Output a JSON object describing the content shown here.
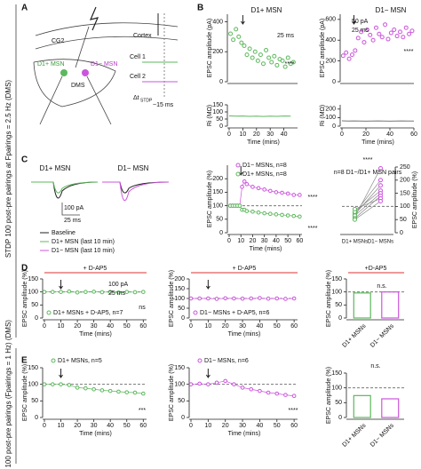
{
  "panel_labels": [
    "A",
    "B",
    "C",
    "D",
    "E"
  ],
  "side_labels": [
    "STDP 100 post-pre pairings at Fpairings = 2.5 Hz (DMS)",
    "STDP 100 post-pre pairings (Fpairings = 1 Hz) (DMS)"
  ],
  "schematic": {
    "cg2": "CG2",
    "cortex": "Cortex",
    "d1plus": "D1+ MSN",
    "d1minus": "D1− MSN",
    "dms": "DMS",
    "cell1": "Cell 1",
    "cell2": "Cell 2",
    "dt": "Δt",
    "dt_sub": "STDP",
    "delay": "~15 ms"
  },
  "traces": {
    "titles": [
      "D1+ MSN",
      "D1− MSN"
    ],
    "scale": [
      "100 pA",
      "25 ms"
    ],
    "legend": [
      "Baseline",
      "D1+ MSN (last 10 min)",
      "D1− MSN (last 10 min)"
    ]
  },
  "chart_data": [
    {
      "type": "scatter",
      "title": "D1+ MSN",
      "ylabel": "EPSC amplitude (pA)",
      "x": [
        1,
        3,
        5,
        7,
        9,
        11,
        13,
        15,
        17,
        19,
        21,
        23,
        25,
        27,
        29,
        31,
        33,
        35,
        37,
        39,
        41,
        43,
        45,
        47
      ],
      "values": [
        320,
        280,
        350,
        300,
        260,
        240,
        180,
        220,
        160,
        200,
        140,
        180,
        120,
        210,
        160,
        130,
        170,
        110,
        150,
        140,
        100,
        160,
        120,
        130
      ],
      "color": "#5cb85c",
      "xlim": [
        0,
        50
      ],
      "ylim": [
        0,
        450
      ],
      "yticks": [
        0,
        200,
        400
      ],
      "arrow_x": 10,
      "annotations": [
        "****"
      ],
      "scale_labels": [
        "25 ms"
      ]
    },
    {
      "type": "line",
      "ylabel": "Ri (MΩ)",
      "xlabel": "Time (mins)",
      "x": [
        0,
        5,
        10,
        15,
        20,
        25,
        30,
        35,
        40,
        45
      ],
      "values": [
        72,
        70,
        71,
        69,
        70,
        68,
        70,
        69,
        71,
        70
      ],
      "color": "#5cb85c",
      "xlim": [
        0,
        50
      ],
      "ylim": [
        0,
        150
      ],
      "yticks": [
        0,
        50,
        100,
        150
      ],
      "xticks": [
        0,
        10,
        20,
        30,
        40
      ]
    },
    {
      "type": "scatter",
      "title": "D1− MSN",
      "ylabel": "EPSC amplitude (pA)",
      "x": [
        1,
        3.5,
        6,
        8.5,
        11,
        13.5,
        16,
        18.5,
        21,
        23.5,
        26,
        28.5,
        31,
        33.5,
        36,
        38.5,
        41,
        43.5,
        46,
        48.5,
        51,
        53.5,
        56,
        58.5
      ],
      "values": [
        250,
        280,
        220,
        260,
        300,
        420,
        480,
        380,
        500,
        450,
        400,
        520,
        460,
        430,
        550,
        410,
        470,
        500,
        440,
        480,
        430,
        520,
        460,
        490
      ],
      "color": "#cc55dd",
      "xlim": [
        0,
        60
      ],
      "ylim": [
        0,
        650
      ],
      "yticks": [
        0,
        200,
        400,
        600
      ],
      "arrow_x": 10,
      "annotations": [
        "****"
      ],
      "scale_labels": [
        "50 pA",
        "25 ms"
      ]
    },
    {
      "type": "line",
      "ylabel": "Ri (MΩ)",
      "xlabel": "Time (mins)",
      "x": [
        0,
        5,
        10,
        15,
        20,
        25,
        30,
        35,
        40,
        45,
        50,
        55,
        60
      ],
      "values": [
        62,
        60,
        61,
        60,
        59,
        60,
        61,
        60,
        59,
        60,
        61,
        60,
        60
      ],
      "color": "#777777",
      "xlim": [
        0,
        60
      ],
      "ylim": [
        0,
        250
      ],
      "yticks": [
        0,
        100,
        200
      ],
      "xticks": [
        0,
        20,
        40,
        60
      ]
    },
    {
      "type": "line",
      "ylabel": "EPSC amplitude (%)",
      "xlabel": "Time (mins)",
      "x": [
        1,
        3,
        5,
        7,
        9,
        11,
        13,
        15,
        20,
        25,
        30,
        35,
        40,
        45,
        50,
        55,
        60
      ],
      "series": [
        {
          "name": "D1− MSNs, n=8",
          "color": "#cc55dd",
          "values": [
            100,
            100,
            100,
            100,
            100,
            170,
            190,
            180,
            170,
            165,
            160,
            155,
            150,
            148,
            145,
            140,
            140
          ]
        },
        {
          "name": "D1+ MSNs, n=8",
          "color": "#5cb85c",
          "values": [
            100,
            100,
            100,
            100,
            100,
            85,
            85,
            80,
            78,
            75,
            72,
            70,
            68,
            66,
            64,
            62,
            60
          ]
        }
      ],
      "xlim": [
        0,
        62
      ],
      "ylim": [
        0,
        250
      ],
      "yticks": [
        0,
        50,
        100,
        150,
        200
      ],
      "xticks": [
        0,
        10,
        20,
        30,
        40,
        50,
        60
      ],
      "reference_line": 100,
      "arrow_x": 10,
      "annotations": [
        "****",
        "****"
      ]
    },
    {
      "type": "paired",
      "ylabel": "EPSC amplitude (%)",
      "categories": [
        "D1+ MSNs",
        "D1− MSNs"
      ],
      "category_colors": [
        "#5cb85c",
        "#cc55dd"
      ],
      "series": [
        {
          "color": "#888888",
          "values": [
            60,
            245
          ]
        },
        {
          "color": "#888888",
          "values": [
            75,
            200
          ]
        },
        {
          "color": "#888888",
          "values": [
            70,
            180
          ]
        },
        {
          "color": "#888888",
          "values": [
            80,
            160
          ]
        },
        {
          "color": "#888888",
          "values": [
            65,
            150
          ]
        },
        {
          "color": "#888888",
          "values": [
            55,
            140
          ]
        },
        {
          "color": "#888888",
          "values": [
            90,
            130
          ]
        },
        {
          "color": "#888888",
          "values": [
            50,
            120
          ]
        }
      ],
      "ylim": [
        0,
        250
      ],
      "yticks": [
        0,
        50,
        100,
        150,
        200,
        250
      ],
      "reference_line": 100,
      "annotations": [
        "****",
        "n=8 D1−/D1+ MSN pairs"
      ]
    },
    {
      "type": "line",
      "header": "+ D-AP5",
      "ylabel": "EPSC amplitude (%)",
      "xlabel": "Time (mins)",
      "x": [
        0,
        5,
        10,
        15,
        20,
        25,
        30,
        35,
        40,
        45,
        50,
        55,
        60
      ],
      "series": [
        {
          "name": "D1+ MSNs + D-AP5, n=7",
          "color": "#5cb85c",
          "values": [
            100,
            100,
            100,
            102,
            98,
            100,
            101,
            99,
            100,
            98,
            100,
            99,
            100
          ]
        }
      ],
      "xlim": [
        0,
        62
      ],
      "ylim": [
        0,
        150
      ],
      "yticks": [
        0,
        50,
        100,
        150
      ],
      "xticks": [
        0,
        10,
        20,
        30,
        40,
        50,
        60
      ],
      "reference_line": 100,
      "arrow_x": 10,
      "annotations": [
        "ns"
      ],
      "scale_labels": [
        "100 pA",
        "25 ms"
      ]
    },
    {
      "type": "line",
      "header": "+ D-AP5",
      "ylabel": "EPSC amplitude (%)",
      "xlabel": "Time (mins)",
      "x": [
        0,
        5,
        10,
        15,
        20,
        25,
        30,
        35,
        40,
        45,
        50,
        55,
        60
      ],
      "series": [
        {
          "name": "D1− MSNs + D-AP5, n=6",
          "color": "#cc55dd",
          "values": [
            100,
            100,
            100,
            98,
            101,
            100,
            99,
            100,
            102,
            99,
            100,
            98,
            100
          ]
        }
      ],
      "xlim": [
        0,
        62
      ],
      "ylim": [
        0,
        200
      ],
      "yticks": [
        0,
        50,
        100,
        150,
        200
      ],
      "xticks": [
        0,
        10,
        20,
        30,
        40,
        50,
        60
      ],
      "reference_line": 100,
      "arrow_x": 10
    },
    {
      "type": "bar",
      "header": "+D-AP5",
      "ylabel": "EPSC amplitude (%)",
      "categories": [
        "D1+ MSNs",
        "D1− MSNs"
      ],
      "values": [
        96,
        100
      ],
      "colors": [
        "#5cb85c",
        "#cc55dd"
      ],
      "ylim": [
        0,
        150
      ],
      "yticks": [
        0,
        50,
        100,
        150
      ],
      "reference_line": 100,
      "annotations": [
        "n.s."
      ]
    },
    {
      "type": "line",
      "ylabel": "EPSC amplitude (%)",
      "xlabel": "Time (mins)",
      "x": [
        0,
        5,
        10,
        15,
        20,
        25,
        30,
        35,
        40,
        45,
        50,
        55,
        60
      ],
      "series": [
        {
          "name": "D1+ MSNs, n=5",
          "color": "#5cb85c",
          "values": [
            100,
            100,
            100,
            98,
            90,
            88,
            85,
            82,
            80,
            78,
            76,
            75,
            72
          ]
        }
      ],
      "xlim": [
        0,
        62
      ],
      "ylim": [
        0,
        150
      ],
      "yticks": [
        0,
        50,
        100,
        150
      ],
      "xticks": [
        0,
        10,
        20,
        30,
        40,
        50,
        60
      ],
      "reference_line": 100,
      "arrow_x": 10,
      "annotations": [
        "***"
      ]
    },
    {
      "type": "line",
      "ylabel": "EPSC amplitude (%)",
      "xlabel": "Time (mins)",
      "x": [
        0,
        5,
        10,
        15,
        20,
        25,
        30,
        35,
        40,
        45,
        50,
        55,
        60
      ],
      "series": [
        {
          "name": "D1− MSNs, n=6",
          "color": "#cc55dd",
          "values": [
            100,
            102,
            100,
            105,
            110,
            100,
            90,
            85,
            80,
            75,
            72,
            68,
            65
          ]
        }
      ],
      "xlim": [
        0,
        62
      ],
      "ylim": [
        0,
        150
      ],
      "yticks": [
        0,
        50,
        100,
        150
      ],
      "xticks": [
        0,
        10,
        20,
        30,
        40,
        50,
        60
      ],
      "reference_line": 100,
      "arrow_x": 10,
      "annotations": [
        "****"
      ]
    },
    {
      "type": "bar",
      "ylabel": "EPSC amplitude (%)",
      "categories": [
        "D1+ MSNs",
        "D1− MSNs"
      ],
      "values": [
        74,
        63
      ],
      "colors": [
        "#5cb85c",
        "#cc55dd"
      ],
      "ylim": [
        0,
        150
      ],
      "yticks": [
        0,
        50,
        100,
        150
      ],
      "reference_line": 100,
      "annotations": [
        "n.s."
      ]
    }
  ]
}
